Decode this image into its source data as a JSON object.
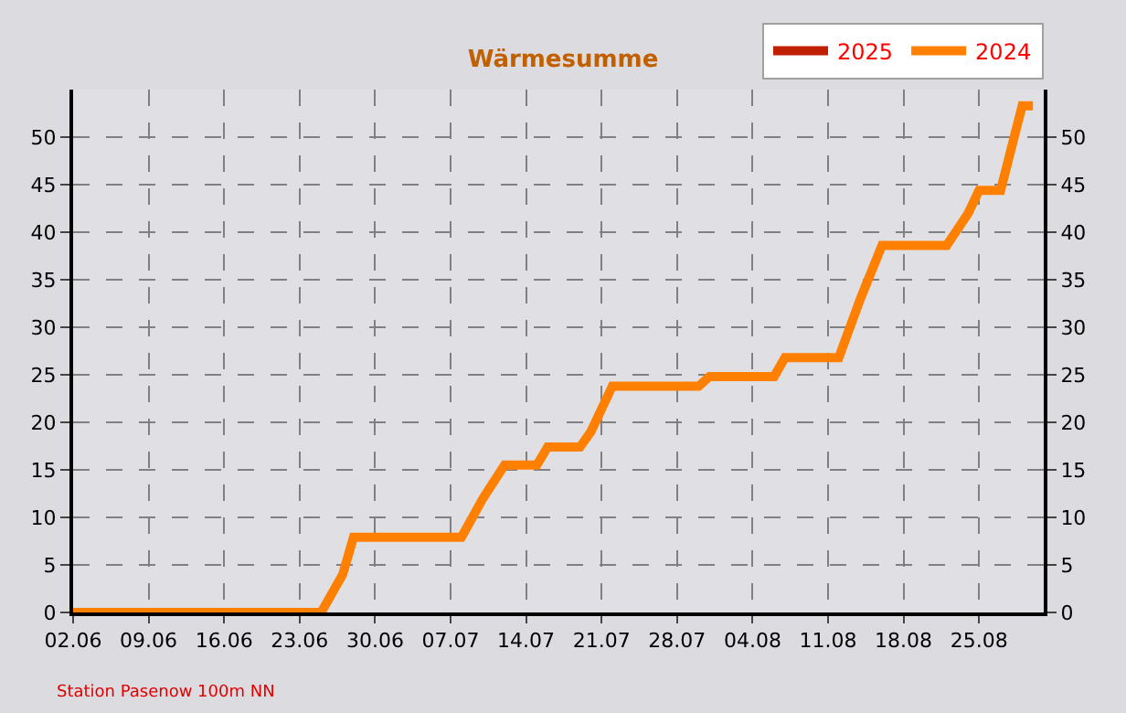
{
  "chart_data": {
    "type": "line",
    "title": "Wärmesumme",
    "x": [
      "--06-02",
      "--06-25",
      "--06-27",
      "--06-28",
      "--07-08",
      "--07-10",
      "--07-12",
      "--07-15",
      "--07-16",
      "--07-19",
      "--07-20",
      "--07-22",
      "--07-30",
      "--07-31",
      "--08-06",
      "--08-07",
      "--08-12",
      "--08-14",
      "--08-16",
      "--08-22",
      "--08-24",
      "--08-25",
      "--08-27",
      "--08-29",
      "--08-30"
    ],
    "series": [
      {
        "name": "2025",
        "color": "#c02000",
        "values": [
          null,
          null,
          null,
          null,
          null,
          null,
          null,
          null,
          null,
          null,
          null,
          null,
          null,
          null,
          null,
          null,
          null,
          null,
          null,
          null,
          null,
          null,
          null,
          null,
          null
        ]
      },
      {
        "name": "2024",
        "color": "#ff8000",
        "values": [
          0,
          0,
          4,
          7.9,
          7.9,
          12,
          15.5,
          15.5,
          17.4,
          17.4,
          19,
          23.8,
          23.8,
          24.8,
          24.8,
          26.8,
          26.8,
          33,
          38.6,
          38.6,
          42,
          44.4,
          44.4,
          53.3,
          53.3
        ]
      }
    ],
    "xlim": [
      "--06-02",
      "--08-31"
    ],
    "xticks": [
      {
        "value": "--06-02",
        "label": "02.06"
      },
      {
        "value": "--06-09",
        "label": "09.06"
      },
      {
        "value": "--06-16",
        "label": "16.06"
      },
      {
        "value": "--06-23",
        "label": "23.06"
      },
      {
        "value": "--06-30",
        "label": "30.06"
      },
      {
        "value": "--07-07",
        "label": "07.07"
      },
      {
        "value": "--07-14",
        "label": "14.07"
      },
      {
        "value": "--07-21",
        "label": "21.07"
      },
      {
        "value": "--07-28",
        "label": "28.07"
      },
      {
        "value": "--08-04",
        "label": "04.08"
      },
      {
        "value": "--08-11",
        "label": "11.08"
      },
      {
        "value": "--08-18",
        "label": "18.08"
      },
      {
        "value": "--08-25",
        "label": "25.08"
      }
    ],
    "ylim": [
      0,
      55
    ],
    "yticks": [
      0,
      5,
      10,
      15,
      20,
      25,
      30,
      35,
      40,
      45,
      50
    ],
    "y2lim": [
      0,
      55
    ],
    "y2ticks": [
      0,
      5,
      10,
      15,
      20,
      25,
      30,
      35,
      40,
      45,
      50
    ],
    "grid": true,
    "legend": "top right",
    "marker": "none",
    "line_style": "solid",
    "annotations": [
      "Station Pasenow 100m NN"
    ]
  }
}
